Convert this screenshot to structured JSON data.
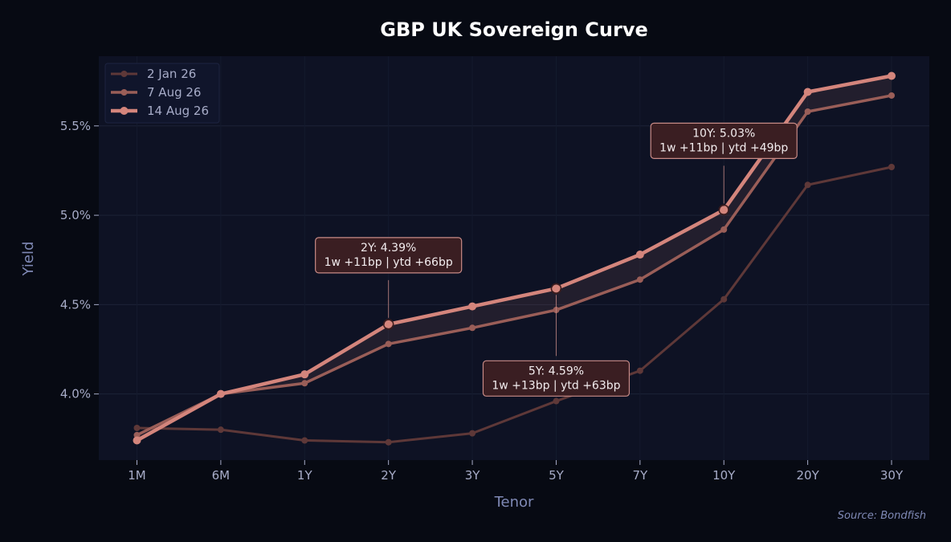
{
  "chart_data": {
    "type": "line",
    "title": "GBP UK Sovereign Curve",
    "xlabel": "Tenor",
    "ylabel": "Yield",
    "categories": [
      "1M",
      "6M",
      "1Y",
      "2Y",
      "3Y",
      "5Y",
      "7Y",
      "10Y",
      "20Y",
      "30Y"
    ],
    "yticks": [
      "4.0%",
      "4.5%",
      "5.0%",
      "5.5%"
    ],
    "ylim": [
      3.63,
      5.89
    ],
    "grid": true,
    "legend_position": "top-left",
    "series": [
      {
        "name": "2 Jan 26",
        "color": "#5e3838",
        "values": [
          3.81,
          3.8,
          3.74,
          3.73,
          3.78,
          3.96,
          4.13,
          4.53,
          5.17,
          5.27
        ]
      },
      {
        "name": "7 Aug 26",
        "color": "#9a5e58",
        "values": [
          3.77,
          4.0,
          4.06,
          4.28,
          4.37,
          4.47,
          4.64,
          4.92,
          5.58,
          5.67
        ]
      },
      {
        "name": "14 Aug 26",
        "color": "#d4857c",
        "values": [
          3.74,
          4.0,
          4.11,
          4.39,
          4.49,
          4.59,
          4.78,
          5.03,
          5.69,
          5.78
        ]
      }
    ],
    "annotations": [
      {
        "category": "2Y",
        "lines": [
          "2Y: 4.39%",
          "1w +11bp | ytd +66bp"
        ],
        "position": "above"
      },
      {
        "category": "5Y",
        "lines": [
          "5Y: 4.59%",
          "1w +13bp | ytd +63bp"
        ],
        "position": "below"
      },
      {
        "category": "10Y",
        "lines": [
          "10Y: 5.03%",
          "1w +11bp | ytd +49bp"
        ],
        "position": "above"
      }
    ],
    "source": "Source: Bondfish"
  }
}
